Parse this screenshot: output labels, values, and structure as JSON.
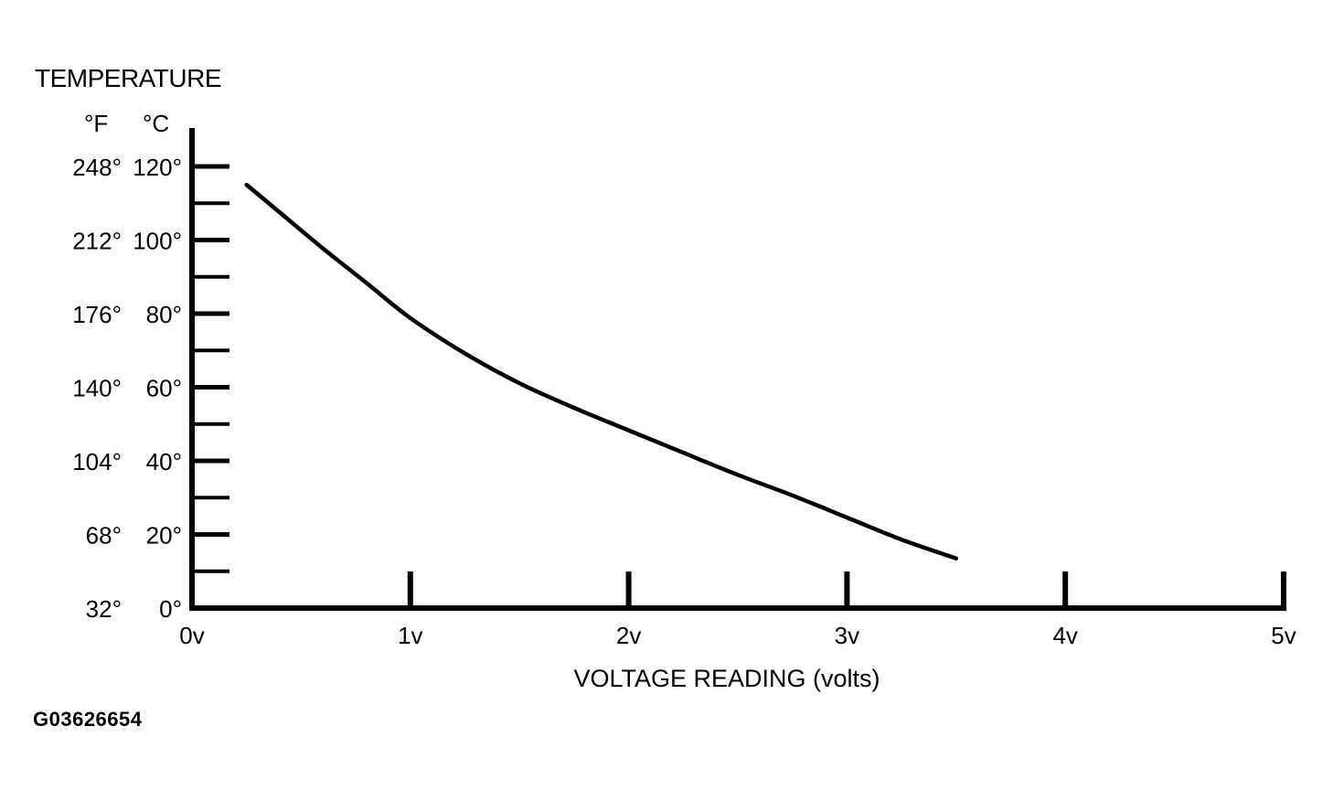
{
  "colors": {
    "background": "#ffffff",
    "ink": "#000000"
  },
  "chart_data": {
    "type": "line",
    "title": "",
    "ylabel": "TEMPERATURE",
    "xlabel": "VOLTAGE READING (volts)",
    "y_unit_headers": {
      "fahrenheit": "°F",
      "celsius": "°C"
    },
    "xlim": [
      0,
      5
    ],
    "ylim": [
      0,
      120
    ],
    "x_ticks": [
      {
        "value": 0,
        "label": "0v"
      },
      {
        "value": 1,
        "label": "1v"
      },
      {
        "value": 2,
        "label": "2v"
      },
      {
        "value": 3,
        "label": "3v"
      },
      {
        "value": 4,
        "label": "4v"
      },
      {
        "value": 5,
        "label": "5v"
      }
    ],
    "y_ticks": [
      {
        "value": 0,
        "fahrenheit": "32°",
        "celsius": "0°"
      },
      {
        "value": 20,
        "fahrenheit": "68°",
        "celsius": "20°"
      },
      {
        "value": 40,
        "fahrenheit": "104°",
        "celsius": "40°"
      },
      {
        "value": 60,
        "fahrenheit": "140°",
        "celsius": "60°"
      },
      {
        "value": 80,
        "fahrenheit": "176°",
        "celsius": "80°"
      },
      {
        "value": 100,
        "fahrenheit": "212°",
        "celsius": "100°"
      },
      {
        "value": 120,
        "fahrenheit": "248°",
        "celsius": "120°"
      }
    ],
    "y_minor_ticks": [
      10,
      30,
      50,
      70,
      90,
      110
    ],
    "grid": false,
    "legend": "none",
    "series": [
      {
        "x": [
          0.25,
          0.4,
          0.6,
          0.8,
          1.0,
          1.25,
          1.5,
          1.75,
          2.0,
          2.25,
          2.5,
          2.75,
          3.0,
          3.25,
          3.5
        ],
        "y": [
          115,
          107.6,
          97.7,
          88.3,
          78.8,
          69.2,
          61.1,
          54.4,
          48.3,
          42.2,
          36.2,
          30.6,
          24.6,
          18.6,
          13.5
        ]
      }
    ]
  },
  "figure_id": "G03626654"
}
